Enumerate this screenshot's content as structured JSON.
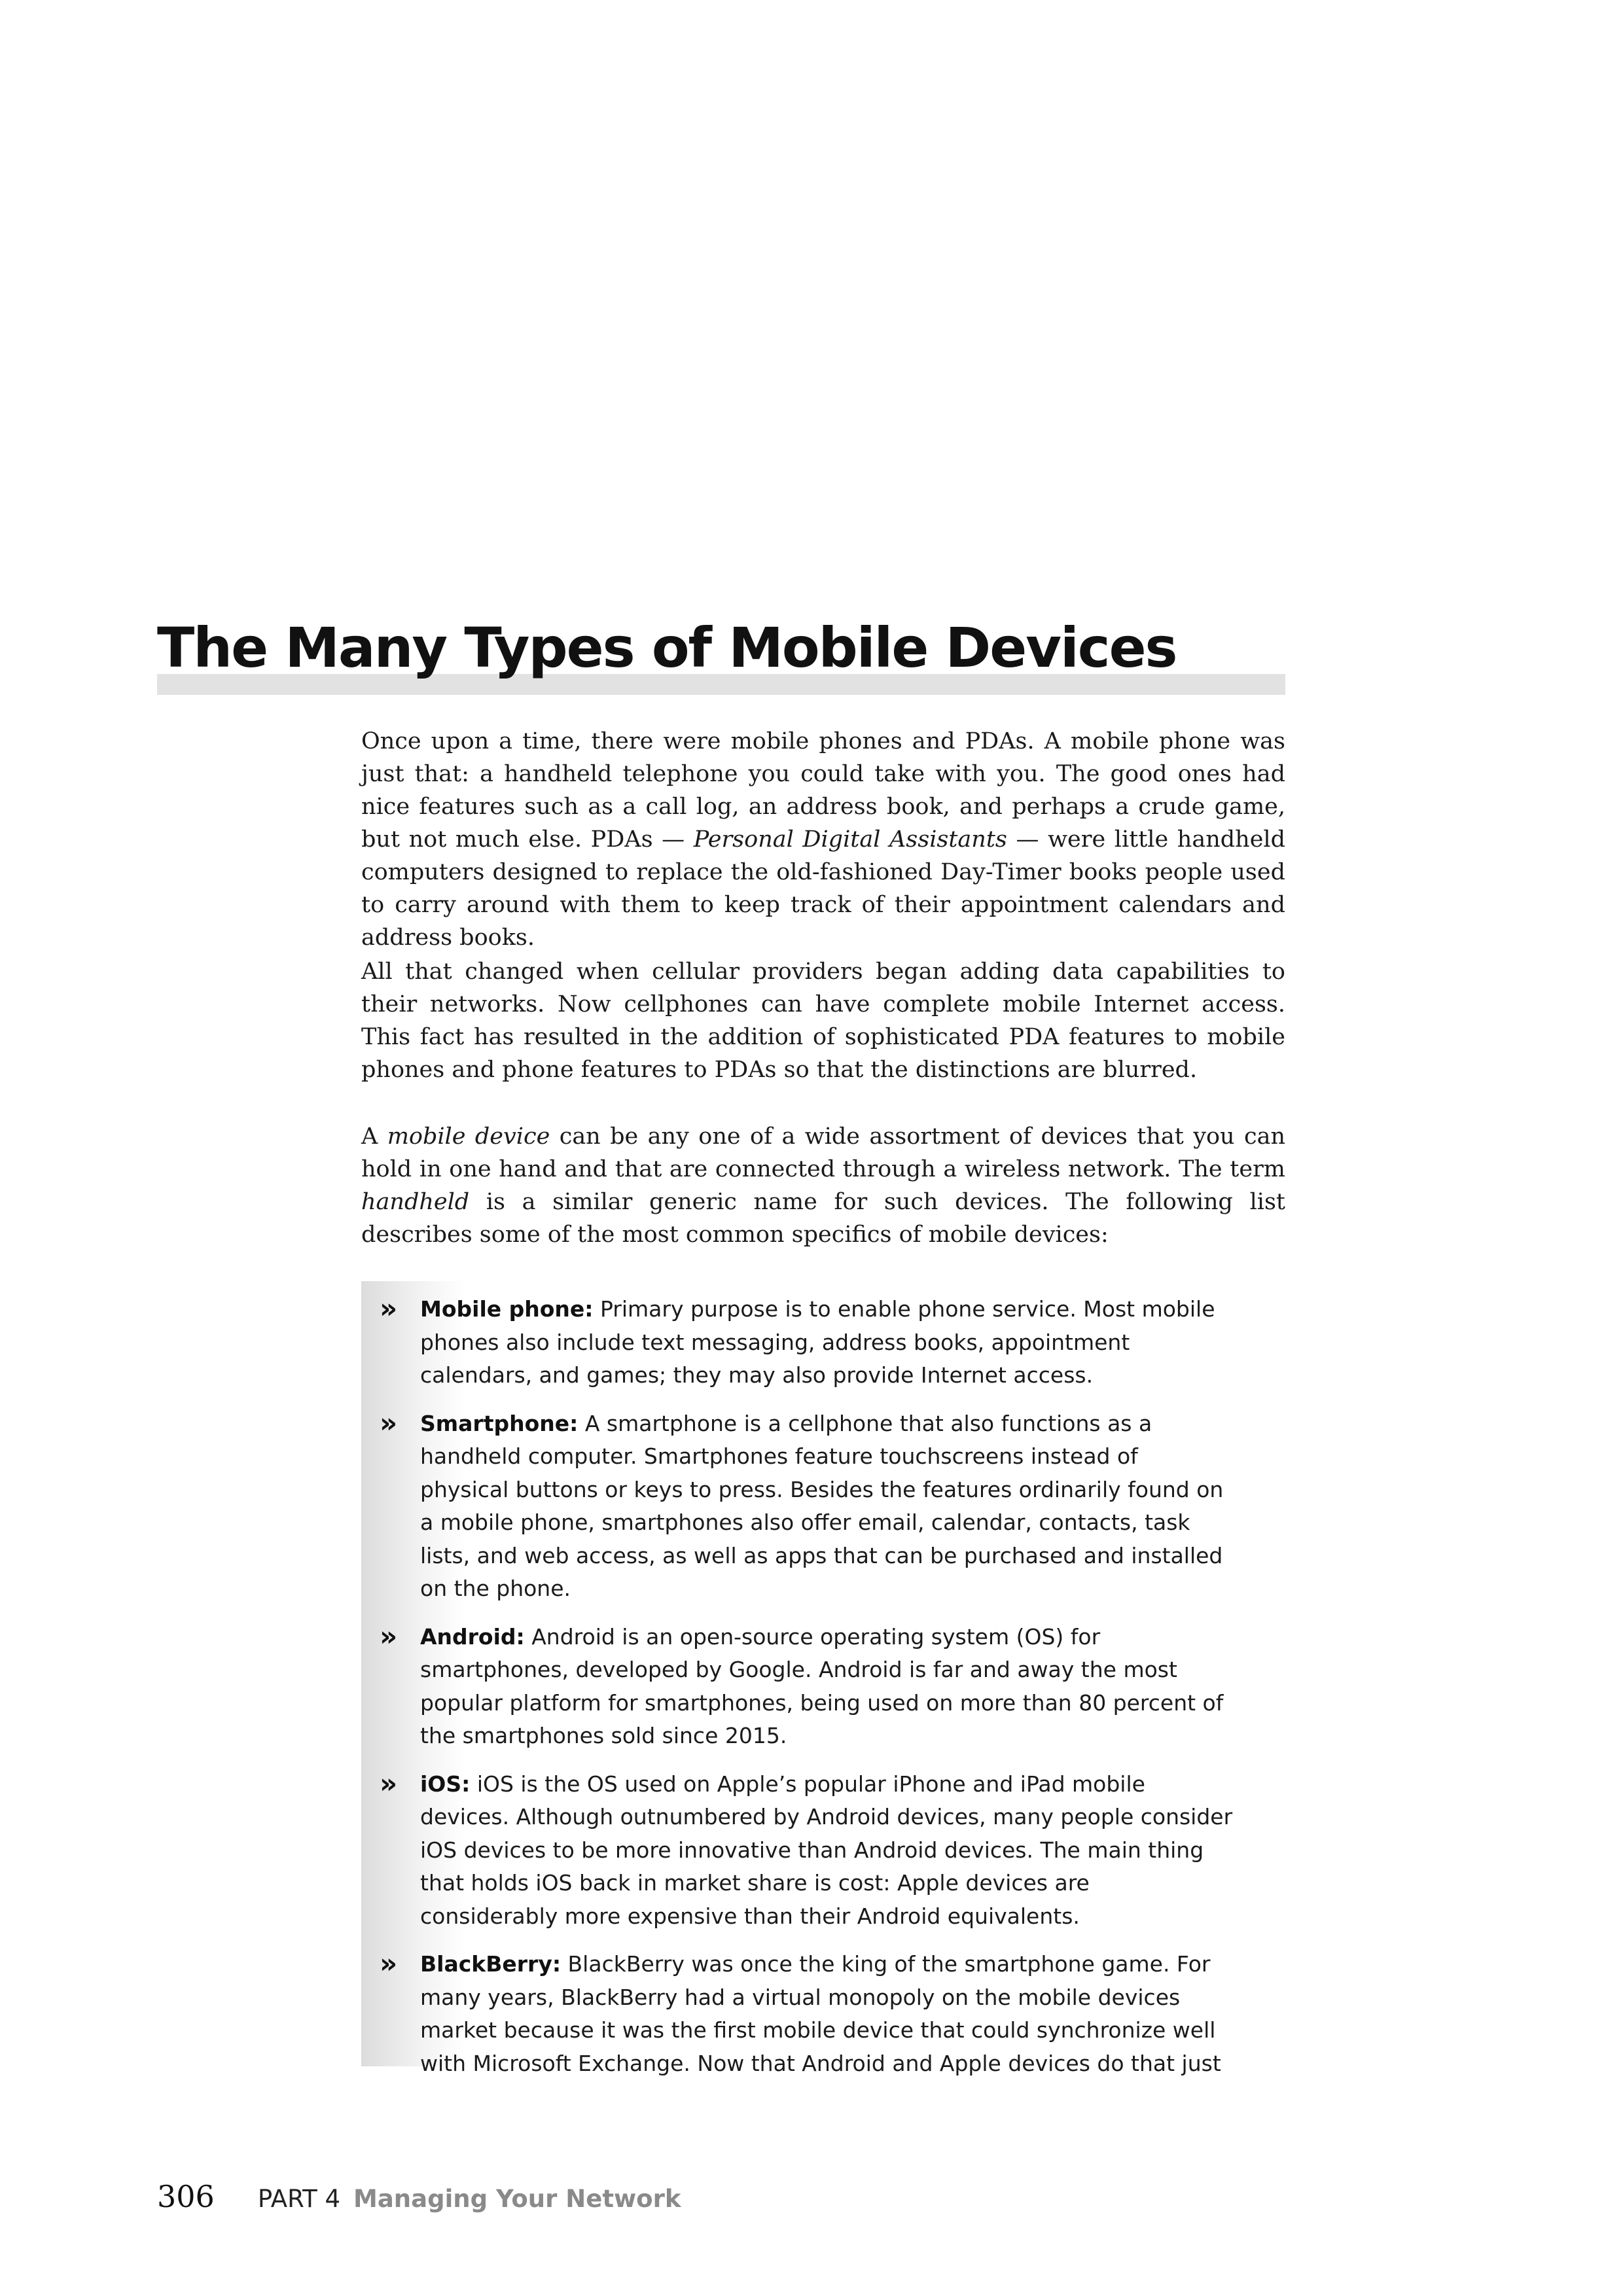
{
  "section": {
    "heading": "The Many Types of Mobile Devices"
  },
  "paragraphs": [
    {
      "parts": [
        "Once upon a time, there were mobile phones and PDAs. A mobile phone was just that: a handheld telephone you could take with you. The good ones had nice features such as a call log, an address book, and perhaps a crude game, but not much else. PDAs — ",
        "Personal Digital Assistants",
        " — were little handheld computers designed to replace the old-fashioned Day-Timer books people used to carry around with them to keep track of their appointment calendars and address books."
      ]
    },
    {
      "parts": [
        "All that changed when cellular providers began adding data capabilities to their networks. Now cellphones can have complete mobile Internet access. This fact has resulted in the addition of sophisticated PDA features to mobile phones and phone features to PDAs so that the distinctions are blurred."
      ]
    },
    {
      "parts": [
        "A ",
        "mobile device",
        " can be any one of a wide assortment of devices that you can hold in one hand and that are connected through a wireless network. The term ",
        "handheld",
        " is a similar generic name for such devices. The following list describes some of the most common specifics of mobile devices:"
      ]
    }
  ],
  "list": {
    "bullet": "»",
    "items": [
      {
        "term": "Mobile phone:",
        "text": " Primary purpose is to enable phone service. Most mobile phones also include text messaging, address books, appointment calendars, and games; they may also provide Internet access."
      },
      {
        "term": "Smartphone:",
        "text": " A smartphone is a cellphone that also functions as a handheld computer. Smartphones feature touchscreens instead of physical buttons or keys to press. Besides the features ordinarily found on a mobile phone, smartphones also offer email, calendar, contacts, task lists, and web access, as well as apps that can be purchased and installed on the phone."
      },
      {
        "term": "Android:",
        "text": " Android is an open-source operating system (OS) for smartphones, developed by Google. Android is far and away the most popular platform for smartphones, being used on more than 80 percent of the smartphones sold since 2015."
      },
      {
        "term": "iOS:",
        "text": " iOS is the OS used on Apple’s popular iPhone and iPad mobile devices. Although outnumbered by Android devices, many people consider iOS devices to be more innovative than Android devices. The main thing that holds iOS back in market share is cost: Apple devices are considerably more expensive than their Android equivalents."
      },
      {
        "term": "BlackBerry:",
        "text": " BlackBerry was once the king of the smartphone game. For many years, BlackBerry had a virtual monopoly on the mobile devices market because it was the first mobile device that could synchronize well with Microsoft Exchange. Now that Android and Apple devices do that just"
      }
    ]
  },
  "footer": {
    "page_number": "306",
    "part_label": "PART 4",
    "part_title": "Managing Your Network"
  }
}
